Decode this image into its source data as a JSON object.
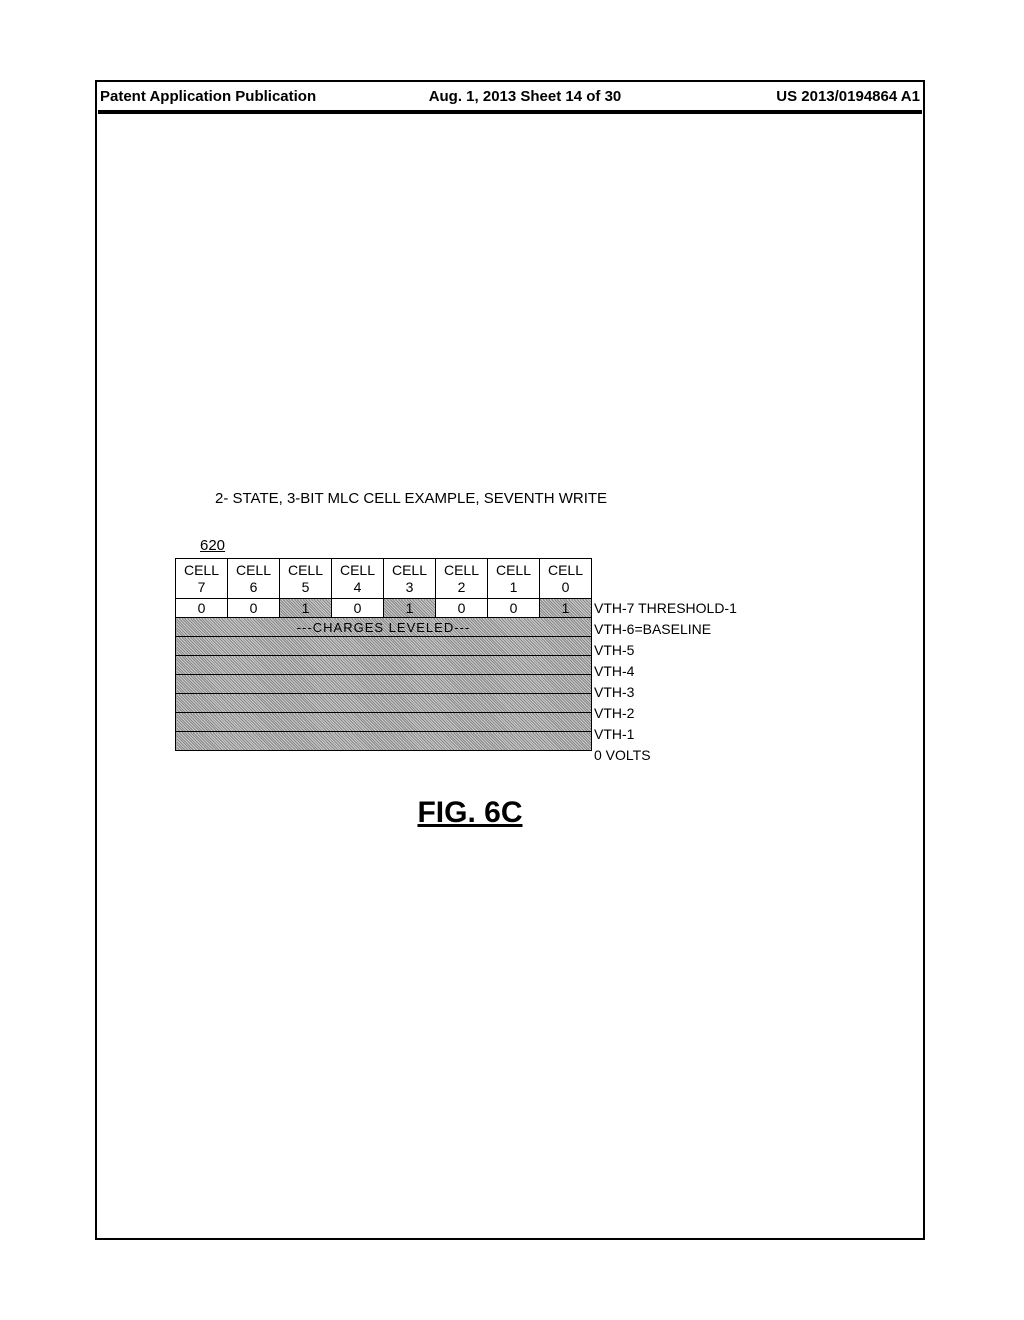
{
  "header": {
    "left": "Patent Application Publication",
    "center": "Aug. 1, 2013  Sheet 14 of 30",
    "right": "US 2013/0194864 A1"
  },
  "diagram": {
    "title": "2- STATE, 3-BIT MLC CELL EXAMPLE, SEVENTH WRITE",
    "ref_number": "620",
    "column_headers": [
      "CELL 7",
      "CELL 6",
      "CELL 5",
      "CELL 4",
      "CELL 3",
      "CELL 2",
      "CELL 1",
      "CELL 0"
    ],
    "data_row": {
      "values": [
        "0",
        "0",
        "1",
        "0",
        "1",
        "0",
        "0",
        "1"
      ],
      "shaded": [
        false,
        false,
        true,
        false,
        true,
        false,
        false,
        true
      ]
    },
    "charges_label": "---CHARGES LEVELED---",
    "row_labels": [
      "VTH-7  THRESHOLD-1",
      "VTH-6=BASELINE",
      "VTH-5",
      "VTH-4",
      "VTH-3",
      "VTH-2",
      "VTH-1",
      "0 VOLTS"
    ],
    "figure_caption": "FIG. 6C"
  }
}
